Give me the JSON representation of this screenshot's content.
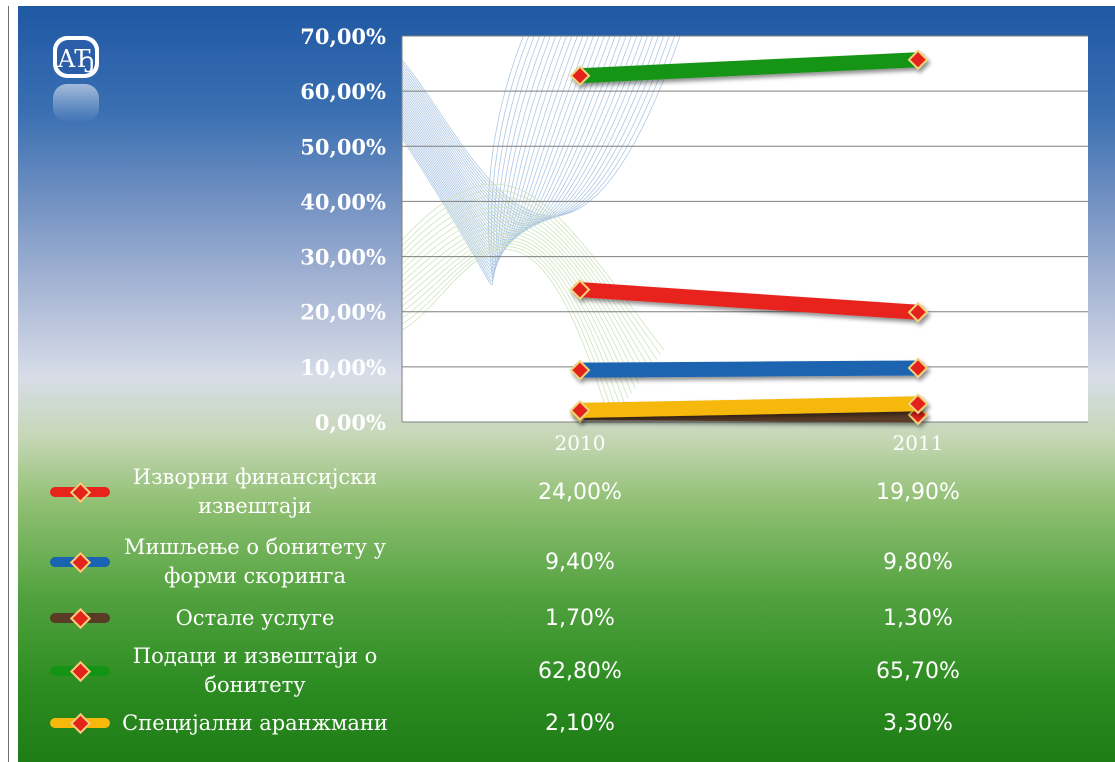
{
  "chart_data": {
    "type": "line",
    "categories": [
      "2010",
      "2011"
    ],
    "series": [
      {
        "name": "Изворни финансијски извештаји",
        "values": [
          24.0,
          19.9
        ],
        "value_labels": [
          "24,00%",
          "19,90%"
        ],
        "color": "#e8231a"
      },
      {
        "name": "Мишљење о бонитету у форми скоринга",
        "values": [
          9.4,
          9.8
        ],
        "value_labels": [
          "9,40%",
          "9,80%"
        ],
        "color": "#1a63b0"
      },
      {
        "name": "Остале услуге",
        "values": [
          1.7,
          1.3
        ],
        "value_labels": [
          "1,70%",
          "1,30%"
        ],
        "color": "#5a3b26"
      },
      {
        "name": "Подаци и извештаји о бонитету",
        "values": [
          62.8,
          65.7
        ],
        "value_labels": [
          "62,80%",
          "65,70%"
        ],
        "color": "#149414"
      },
      {
        "name": "Специјални аранжмани",
        "values": [
          2.1,
          3.3
        ],
        "value_labels": [
          "2,10%",
          "3,30%"
        ],
        "color": "#f6b80b"
      }
    ],
    "y_ticks": [
      "0,00%",
      "10,00%",
      "20,00%",
      "30,00%",
      "40,00%",
      "50,00%",
      "60,00%",
      "70,00%"
    ],
    "ylim": [
      0,
      70
    ],
    "grid": true,
    "legend": "data table below chart"
  },
  "logo": {
    "icon": "ap-monogram-logo-icon"
  }
}
